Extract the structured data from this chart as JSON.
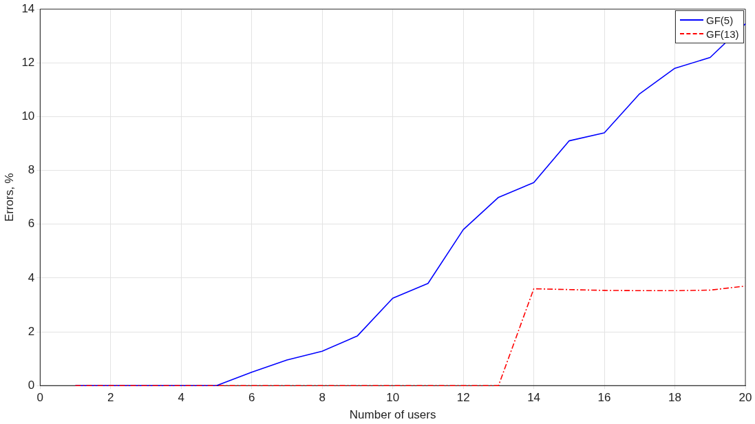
{
  "chart_data": {
    "type": "line",
    "xlabel": "Number of users",
    "ylabel": "Errors, %",
    "x": [
      1,
      2,
      3,
      4,
      5,
      6,
      7,
      8,
      9,
      10,
      11,
      12,
      13,
      14,
      15,
      16,
      17,
      18,
      19,
      20
    ],
    "series": [
      {
        "name": "GF(5)",
        "color": "#0000ff",
        "line_style": "solid",
        "values": [
          0,
          0,
          0,
          0,
          0,
          0.5,
          0.95,
          1.28,
          1.85,
          3.25,
          3.8,
          5.8,
          7.0,
          7.55,
          9.1,
          9.4,
          10.85,
          11.8,
          12.2,
          13.45
        ]
      },
      {
        "name": "GF(13)",
        "color": "#ff0000",
        "line_style": "dashed",
        "values": [
          0,
          0,
          0,
          0,
          0,
          0,
          0,
          0,
          0,
          0,
          0,
          0,
          0,
          3.6,
          3.57,
          3.54,
          3.53,
          3.53,
          3.55,
          3.7
        ]
      }
    ],
    "xlim": [
      0,
      20
    ],
    "xticks": [
      0,
      2,
      4,
      6,
      8,
      10,
      12,
      14,
      16,
      18,
      20
    ],
    "ylim": [
      0,
      14
    ],
    "yticks": [
      0,
      2,
      4,
      6,
      8,
      10,
      12,
      14
    ],
    "grid": true,
    "legend": "top right",
    "marker": "none"
  }
}
